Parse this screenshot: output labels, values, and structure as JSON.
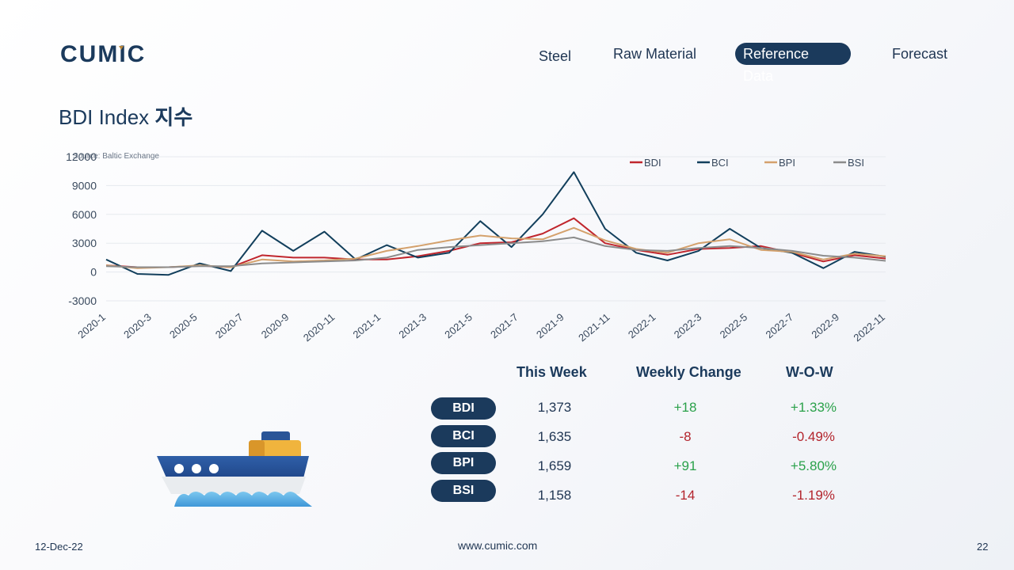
{
  "brand": {
    "logo_text": "CUMIC"
  },
  "nav": {
    "items": [
      {
        "label": "Steel"
      },
      {
        "label": "Raw Material"
      },
      {
        "label": "Reference Data",
        "active": true
      },
      {
        "label": "Forecast"
      }
    ]
  },
  "page": {
    "title": "BDI Index",
    "title_kr": "지수",
    "source": "Source: Baltic Exchange"
  },
  "chart_data": {
    "type": "line",
    "title": "",
    "xlabel": "",
    "ylabel": "",
    "ylim": [
      -3000,
      12000
    ],
    "yticks": [
      12000,
      9000,
      6000,
      3000,
      0,
      -3000
    ],
    "x_tick_labels": [
      "2020-1",
      "2020-3",
      "2020-5",
      "2020-7",
      "2020-9",
      "2020-11",
      "2021-1",
      "2021-3",
      "2021-5",
      "2021-7",
      "2021-9",
      "2021-11",
      "2022-1",
      "2022-3",
      "2022-5",
      "2022-7",
      "2022-9",
      "2022-11"
    ],
    "legend_position": "top-right",
    "grid": true,
    "series": [
      {
        "name": "BDI",
        "color": "#c0262d",
        "values": [
          700,
          500,
          500,
          650,
          500,
          1750,
          1500,
          1500,
          1300,
          1300,
          1650,
          2200,
          3000,
          3100,
          4000,
          5600,
          3000,
          2300,
          1800,
          2400,
          2500,
          2700,
          2000,
          1100,
          1750,
          1400
        ]
      },
      {
        "name": "BCI",
        "color": "#123f5c",
        "values": [
          1300,
          -200,
          -300,
          900,
          100,
          4300,
          2200,
          4200,
          1300,
          2800,
          1500,
          2000,
          5300,
          2600,
          6000,
          10400,
          4500,
          2000,
          1200,
          2200,
          4500,
          2500,
          2000,
          400,
          2100,
          1600
        ]
      },
      {
        "name": "BPI",
        "color": "#d4a16c",
        "values": [
          700,
          400,
          500,
          700,
          500,
          1300,
          1100,
          1200,
          1400,
          2200,
          2700,
          3300,
          3800,
          3500,
          3400,
          4600,
          3300,
          2400,
          2000,
          3000,
          3400,
          2300,
          2100,
          1300,
          1900,
          1650
        ]
      },
      {
        "name": "BSI",
        "color": "#8c8c8c",
        "values": [
          600,
          500,
          500,
          600,
          600,
          900,
          1000,
          1100,
          1200,
          1500,
          2300,
          2600,
          2800,
          3000,
          3200,
          3600,
          2700,
          2300,
          2200,
          2500,
          2700,
          2500,
          2200,
          1700,
          1500,
          1158
        ]
      }
    ]
  },
  "table": {
    "headers": {
      "this_week": "This Week",
      "weekly_change": "Weekly Change",
      "wow": "W-O-W"
    },
    "rows": [
      {
        "label": "BDI",
        "this_week": "1,373",
        "change": "+18",
        "wow": "+1.33%",
        "dir": "pos"
      },
      {
        "label": "BCI",
        "this_week": "1,635",
        "change": "-8",
        "wow": "-0.49%",
        "dir": "neg"
      },
      {
        "label": "BPI",
        "this_week": "1,659",
        "change": "+91",
        "wow": "+5.80%",
        "dir": "pos"
      },
      {
        "label": "BSI",
        "this_week": "1,158",
        "change": "-14",
        "wow": "-1.19%",
        "dir": "neg"
      }
    ]
  },
  "footer": {
    "date": "12-Dec-22",
    "url": "www.cumic.com",
    "page_number": "22"
  },
  "colors": {
    "primary": "#1b3a5c",
    "positive": "#2aa14a",
    "negative": "#b3242c"
  },
  "icons": {
    "ship": "ship-icon"
  }
}
